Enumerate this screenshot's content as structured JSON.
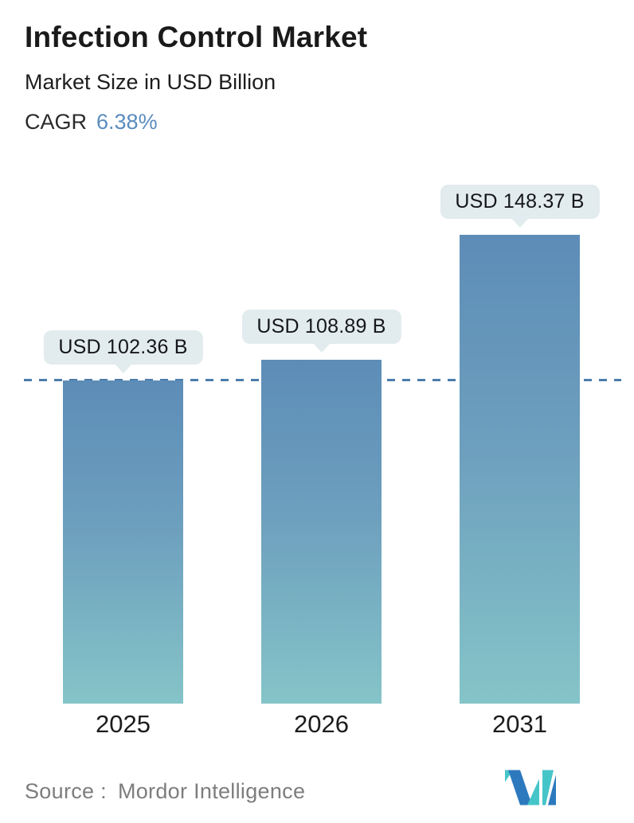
{
  "header": {
    "title": "Infection Control Market",
    "subtitle": "Market Size in USD Billion",
    "cagr_label": "CAGR",
    "cagr_value": "6.38%"
  },
  "chart_data": {
    "type": "bar",
    "title": "Infection Control Market",
    "subtitle": "Market Size in USD Billion",
    "unit": "USD Billion",
    "cagr": "6.38%",
    "categories": [
      "2025",
      "2026",
      "2031"
    ],
    "values": [
      102.36,
      108.89,
      148.37
    ],
    "value_labels": [
      "USD 102.36 B",
      "USD 108.89 B",
      "USD 148.37 B"
    ],
    "ylim": [
      0,
      150
    ],
    "grid": false,
    "legend": false,
    "reference_line": {
      "value": 102.36,
      "style": "dashed"
    },
    "colors": {
      "bar_gradient_top": "#5d8db7",
      "bar_gradient_bottom": "#85c4c8",
      "dashed_line": "#4b7dab",
      "label_badge_bg": "#e2ebee",
      "cagr_accent": "#5a8cbe"
    }
  },
  "footer": {
    "source_label": "Source :",
    "source_name": "Mordor Intelligence",
    "logo_name": "mordor-intelligence-logo",
    "logo_colors": {
      "teal": "#46c5c9",
      "blue": "#2d79be"
    }
  }
}
